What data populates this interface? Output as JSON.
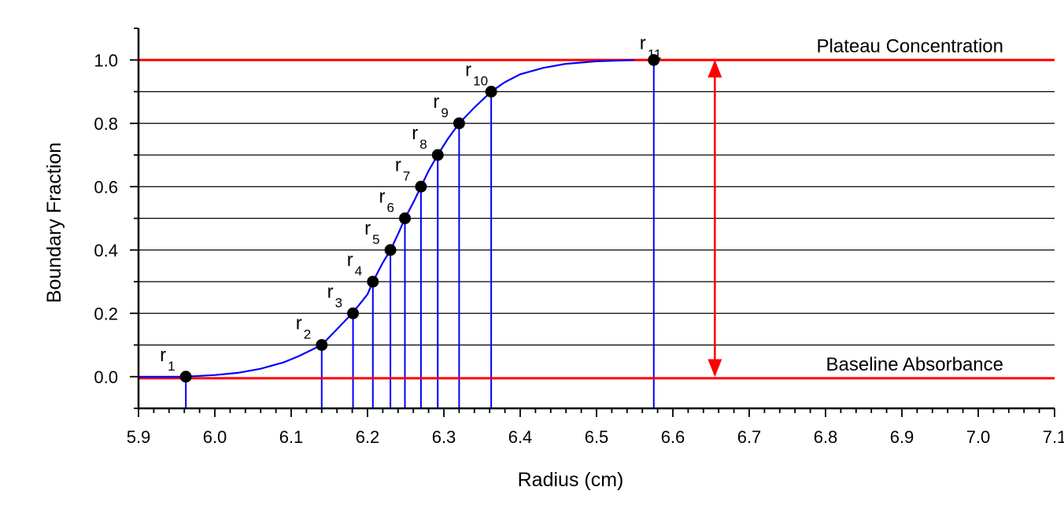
{
  "chart_data": {
    "type": "scatter",
    "xlabel": "Radius (cm)",
    "ylabel": "Boundary Fraction",
    "xlim": [
      5.9,
      7.1
    ],
    "ylim": [
      -0.1,
      1.1
    ],
    "x_ticks": [
      "5.9",
      "6.0",
      "6.1",
      "6.2",
      "6.3",
      "6.4",
      "6.5",
      "6.6",
      "6.7",
      "6.8",
      "6.9",
      "7.0",
      "7.1"
    ],
    "y_ticks": [
      "0.0",
      "0.2",
      "0.4",
      "0.6",
      "0.8",
      "1.0"
    ],
    "horizontal_grid": [
      0.1,
      0.2,
      0.3,
      0.4,
      0.5,
      0.6,
      0.7,
      0.8,
      0.9
    ],
    "grid": true,
    "colors": {
      "curve": "#0000ff",
      "points": "#000000",
      "reference_lines": "#ff0000",
      "grid": "#000000"
    },
    "curve": {
      "x": [
        5.9,
        5.96,
        6.0,
        6.03,
        6.06,
        6.09,
        6.11,
        6.14,
        6.16,
        6.18,
        6.2,
        6.207,
        6.22,
        6.23,
        6.24,
        6.249,
        6.26,
        6.27,
        6.28,
        6.292,
        6.305,
        6.32,
        6.34,
        6.362,
        6.38,
        6.4,
        6.43,
        6.46,
        6.5,
        6.55
      ],
      "y": [
        0.0,
        0.0,
        0.005,
        0.012,
        0.025,
        0.045,
        0.065,
        0.1,
        0.15,
        0.2,
        0.26,
        0.3,
        0.36,
        0.4,
        0.45,
        0.5,
        0.55,
        0.6,
        0.65,
        0.7,
        0.75,
        0.8,
        0.85,
        0.9,
        0.93,
        0.955,
        0.975,
        0.988,
        0.996,
        1.0
      ]
    },
    "points": [
      {
        "label": "r",
        "sub": "1",
        "x": 5.962,
        "y": 0.0
      },
      {
        "label": "r",
        "sub": "2",
        "x": 6.14,
        "y": 0.1
      },
      {
        "label": "r",
        "sub": "3",
        "x": 6.181,
        "y": 0.2
      },
      {
        "label": "r",
        "sub": "4",
        "x": 6.207,
        "y": 0.3
      },
      {
        "label": "r",
        "sub": "5",
        "x": 6.23,
        "y": 0.4
      },
      {
        "label": "r",
        "sub": "6",
        "x": 6.249,
        "y": 0.5
      },
      {
        "label": "r",
        "sub": "7",
        "x": 6.27,
        "y": 0.6
      },
      {
        "label": "r",
        "sub": "8",
        "x": 6.292,
        "y": 0.7
      },
      {
        "label": "r",
        "sub": "9",
        "x": 6.32,
        "y": 0.8
      },
      {
        "label": "r",
        "sub": "10",
        "x": 6.362,
        "y": 0.9
      },
      {
        "label": "r",
        "sub": "11",
        "x": 6.575,
        "y": 1.0
      }
    ],
    "reference_lines": [
      {
        "y": 1.0,
        "label": "Plateau Concentration"
      },
      {
        "y": -0.005,
        "label": "Baseline Absorbance"
      }
    ],
    "double_arrow": {
      "x": 6.655,
      "y_from": 0.0,
      "y_to": 1.0
    }
  }
}
